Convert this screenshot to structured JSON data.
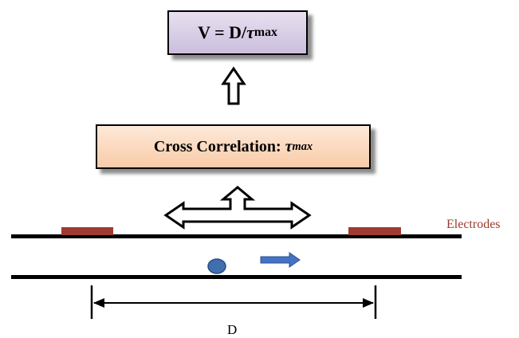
{
  "velocity_box": {
    "lhs": "V = D/",
    "symbol": "τ",
    "subscript": "max"
  },
  "xcorr_box": {
    "text": "Cross Correlation: ",
    "symbol": "τ",
    "subscript": "max"
  },
  "labels": {
    "electrodes": "Electrodes",
    "distance": "D"
  },
  "colors": {
    "electrode": "#9e3b32",
    "particle": "#3f6fae",
    "flow_arrow": "#4472c4",
    "velocity_box_fill": "#d8cde6",
    "xcorr_box_fill": "#fbd5b5"
  }
}
